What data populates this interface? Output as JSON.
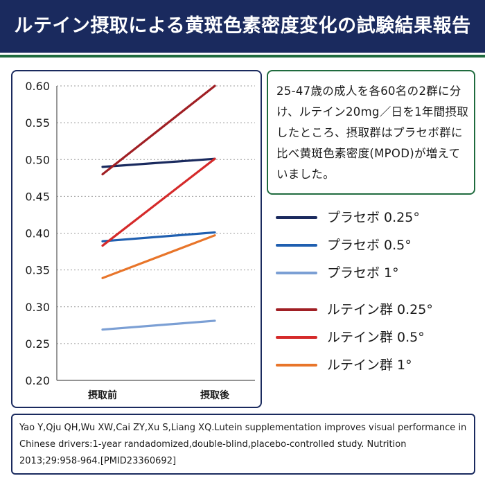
{
  "header": {
    "title": "ルテイン摂取による黄斑色素密度変化の試験結果報告"
  },
  "note": {
    "text": "25-47歳の成人を各60名の2群に分け、ルテイン20mg／日を1年間摂取したところ、摂取群はプラセボ群に比べ黄斑色素密度(MPOD)が増えていました。"
  },
  "reference": {
    "text": "Yao Y,Qju QH,Wu XW,Cai ZY,Xu S,Liang XQ.Lutein supplementation improves visual performance in Chinese drivers:1-year randadomized,double-blind,placebo-controlled study. Nutrition 2013;29:958-964.[PMID23360692]"
  },
  "chart_data": {
    "type": "line",
    "categories": [
      "摂取前",
      "摂取後"
    ],
    "ylim": [
      0.2,
      0.6
    ],
    "yticks": [
      "0.60",
      "0.55",
      "0.50",
      "0.45",
      "0.40",
      "0.35",
      "0.30",
      "0.25",
      "0.20"
    ],
    "grid": "horizontal-dotted",
    "legend_position": "right",
    "series": [
      {
        "name": "プラセボ 0.25°",
        "values": [
          0.49,
          0.501
        ],
        "color": "#1a2a5e"
      },
      {
        "name": "プラセボ 0.5°",
        "values": [
          0.389,
          0.401
        ],
        "color": "#1f5fb0"
      },
      {
        "name": "プラセボ 1°",
        "values": [
          0.269,
          0.281
        ],
        "color": "#7b9fd4"
      },
      {
        "name": "ルテイン群 0.25°",
        "values": [
          0.48,
          0.6
        ],
        "color": "#a01f24"
      },
      {
        "name": "ルテイン群 0.5°",
        "values": [
          0.383,
          0.501
        ],
        "color": "#d52a2a"
      },
      {
        "name": "ルテイン群 1°",
        "values": [
          0.339,
          0.397
        ],
        "color": "#e8752a"
      }
    ]
  }
}
